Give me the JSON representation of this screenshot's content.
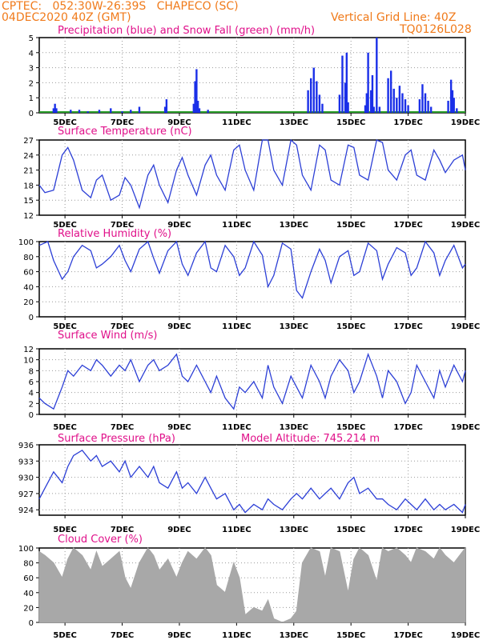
{
  "header": {
    "line1": "CPTEC:   052:30W-26:39S   CHAPECO (SC)",
    "line2": "04DEC2020 40Z (GMT)",
    "grid_note": "Vertical Grid Line: 40Z",
    "code": "TQ0126L028"
  },
  "colors": {
    "header": "#f07a1a",
    "title": "#e0108a",
    "line": "#2c3fd6",
    "bar_blue": "#1a2fe8",
    "bar_green": "#2ca02c",
    "cloud": "#a8a8a8"
  },
  "x_ticks": [
    "5DEC",
    "7DEC",
    "9DEC",
    "11DEC",
    "13DEC",
    "15DEC",
    "17DEC",
    "19DEC"
  ],
  "chart_data": [
    {
      "type": "bar",
      "title": "Precipitation (blue) and Snow Fall (green) (mm/h)",
      "ylim": [
        0,
        5
      ],
      "yticks": [
        "0",
        "1",
        "2",
        "3",
        "4",
        "5"
      ],
      "x_range_days": [
        4.1,
        19.0
      ],
      "series": [
        {
          "x": [
            4.6,
            4.65,
            4.7,
            5.2,
            5.5,
            5.8,
            6.2,
            6.6,
            7.0,
            7.3,
            7.6,
            8.5,
            8.55,
            9.5,
            9.55,
            9.6,
            9.65,
            9.7,
            10.0,
            13.5,
            13.6,
            13.7,
            13.8,
            13.9,
            14.0,
            14.6,
            14.7,
            14.8,
            14.85,
            14.9,
            15.5,
            15.55,
            15.6,
            15.7,
            15.75,
            15.8,
            15.9,
            16.0,
            16.3,
            16.4,
            16.5,
            16.6,
            16.7,
            16.8,
            16.9,
            17.0,
            17.4,
            17.5,
            17.6,
            17.7,
            17.8,
            18.4,
            18.5,
            18.55,
            18.6,
            18.7
          ],
          "values": [
            0.3,
            0.6,
            0.3,
            0.2,
            0.2,
            0.1,
            0.2,
            0.3,
            0.1,
            0.2,
            0.4,
            0.4,
            0.9,
            0.6,
            2.1,
            2.9,
            0.8,
            0.3,
            0.2,
            1.5,
            2.3,
            3.0,
            2.1,
            1.2,
            0.6,
            1.2,
            3.8,
            2.0,
            4.0,
            0.7,
            0.5,
            1.3,
            4.0,
            1.5,
            2.5,
            0.4,
            5.0,
            0.4,
            2.3,
            2.8,
            1.6,
            1.0,
            1.8,
            1.3,
            0.9,
            0.5,
            0.9,
            1.9,
            1.3,
            0.8,
            0.4,
            0.8,
            2.2,
            1.5,
            1.0,
            0.3
          ]
        }
      ]
    },
    {
      "type": "line",
      "title": "Surface Temperature (nC)",
      "ylim": [
        12,
        27
      ],
      "yticks": [
        "12",
        "15",
        "18",
        "21",
        "24",
        "27"
      ],
      "x": [
        4.1,
        4.3,
        4.6,
        4.9,
        5.1,
        5.3,
        5.6,
        5.9,
        6.1,
        6.3,
        6.6,
        6.9,
        7.1,
        7.3,
        7.6,
        7.9,
        8.1,
        8.3,
        8.6,
        8.9,
        9.1,
        9.3,
        9.6,
        9.9,
        10.1,
        10.3,
        10.6,
        10.9,
        11.1,
        11.3,
        11.6,
        11.9,
        12.1,
        12.3,
        12.6,
        12.9,
        13.1,
        13.3,
        13.6,
        13.9,
        14.1,
        14.3,
        14.6,
        14.9,
        15.1,
        15.3,
        15.6,
        15.9,
        16.1,
        16.3,
        16.6,
        16.9,
        17.1,
        17.3,
        17.6,
        17.9,
        18.1,
        18.3,
        18.6,
        18.9,
        19.0
      ],
      "values": [
        18,
        16.5,
        17,
        24,
        25.5,
        23,
        17,
        15.5,
        19,
        20,
        15,
        16,
        19.5,
        18,
        13.5,
        20,
        22,
        18,
        14.5,
        21,
        23.5,
        20,
        16,
        22,
        24,
        20,
        17,
        25,
        26,
        21,
        17,
        27,
        27,
        21,
        18,
        27,
        26,
        20,
        17,
        26,
        25,
        19,
        18,
        26,
        25.5,
        20,
        19,
        27,
        26.5,
        21,
        19,
        24,
        25,
        20,
        19,
        25,
        23,
        20.5,
        23,
        24,
        21
      ]
    },
    {
      "type": "line",
      "title": "Relative Humidity (%)",
      "ylim": [
        0,
        100
      ],
      "yticks": [
        "0",
        "20",
        "40",
        "60",
        "80",
        "100"
      ],
      "x": [
        4.1,
        4.4,
        4.6,
        4.9,
        5.1,
        5.3,
        5.6,
        5.9,
        6.1,
        6.3,
        6.6,
        6.9,
        7.1,
        7.3,
        7.6,
        7.9,
        8.1,
        8.3,
        8.6,
        8.9,
        9.1,
        9.3,
        9.6,
        9.9,
        10.1,
        10.3,
        10.6,
        10.9,
        11.1,
        11.3,
        11.6,
        11.9,
        12.1,
        12.3,
        12.6,
        12.9,
        13.1,
        13.3,
        13.6,
        13.9,
        14.1,
        14.3,
        14.6,
        14.9,
        15.1,
        15.3,
        15.6,
        15.9,
        16.1,
        16.3,
        16.6,
        16.9,
        17.1,
        17.3,
        17.6,
        17.9,
        18.1,
        18.3,
        18.6,
        18.9,
        19.0
      ],
      "values": [
        95,
        100,
        75,
        50,
        60,
        80,
        95,
        88,
        65,
        70,
        80,
        95,
        75,
        60,
        90,
        100,
        78,
        58,
        88,
        100,
        70,
        55,
        85,
        100,
        65,
        60,
        95,
        80,
        55,
        65,
        100,
        82,
        40,
        55,
        98,
        90,
        35,
        25,
        60,
        90,
        75,
        45,
        80,
        88,
        55,
        60,
        98,
        88,
        50,
        70,
        92,
        85,
        55,
        65,
        100,
        85,
        55,
        75,
        95,
        65,
        70
      ]
    },
    {
      "type": "line",
      "title": "Surface Wind (m/s)",
      "ylim": [
        0,
        12
      ],
      "yticks": [
        "0",
        "2",
        "4",
        "6",
        "8",
        "10",
        "12"
      ],
      "x": [
        4.1,
        4.3,
        4.6,
        4.9,
        5.1,
        5.3,
        5.6,
        5.9,
        6.1,
        6.3,
        6.6,
        6.9,
        7.1,
        7.3,
        7.6,
        7.9,
        8.1,
        8.3,
        8.6,
        8.9,
        9.1,
        9.3,
        9.6,
        9.9,
        10.1,
        10.3,
        10.6,
        10.9,
        11.1,
        11.3,
        11.6,
        11.9,
        12.1,
        12.3,
        12.6,
        12.9,
        13.1,
        13.3,
        13.6,
        13.9,
        14.1,
        14.3,
        14.6,
        14.9,
        15.1,
        15.3,
        15.6,
        15.9,
        16.1,
        16.3,
        16.6,
        16.9,
        17.1,
        17.3,
        17.6,
        17.9,
        18.1,
        18.3,
        18.6,
        18.9,
        19.0
      ],
      "values": [
        3,
        2,
        1,
        5,
        8,
        7,
        9,
        8,
        10,
        9,
        7,
        9,
        8,
        10,
        6,
        9,
        10,
        8,
        9,
        11,
        7,
        6,
        9,
        6,
        4,
        7,
        3,
        1,
        5,
        4,
        6,
        3,
        9,
        5,
        2,
        7,
        5,
        3,
        9,
        6,
        3,
        7,
        10,
        8,
        4,
        6,
        11,
        7,
        3,
        8,
        6,
        2,
        4,
        9,
        6,
        3,
        8,
        5,
        9,
        6,
        8
      ]
    },
    {
      "type": "line",
      "title": "Surface Pressure (hPa)",
      "annotation": "Model Altitude: 745.214 m",
      "ylim": [
        923,
        936
      ],
      "yticks": [
        "924",
        "927",
        "930",
        "933",
        "936"
      ],
      "x": [
        4.1,
        4.3,
        4.6,
        4.9,
        5.1,
        5.3,
        5.6,
        5.9,
        6.1,
        6.3,
        6.6,
        6.9,
        7.1,
        7.3,
        7.6,
        7.9,
        8.1,
        8.3,
        8.6,
        8.9,
        9.1,
        9.3,
        9.6,
        9.9,
        10.1,
        10.3,
        10.6,
        10.9,
        11.1,
        11.3,
        11.6,
        11.9,
        12.1,
        12.3,
        12.6,
        12.9,
        13.1,
        13.3,
        13.6,
        13.9,
        14.1,
        14.3,
        14.6,
        14.9,
        15.1,
        15.3,
        15.6,
        15.9,
        16.1,
        16.3,
        16.6,
        16.9,
        17.1,
        17.3,
        17.6,
        17.9,
        18.1,
        18.3,
        18.6,
        18.9,
        19.0
      ],
      "values": [
        926,
        928,
        931,
        929,
        932,
        934,
        935,
        933,
        934,
        932,
        933,
        931,
        933,
        930,
        932,
        930,
        932,
        929,
        928,
        931,
        928,
        929,
        927,
        930,
        928,
        926,
        927,
        924,
        925,
        923.5,
        925,
        924,
        926,
        925,
        924,
        926,
        927,
        926,
        928,
        926,
        927,
        928,
        926,
        929,
        930,
        927,
        928,
        926,
        926,
        925,
        924,
        926,
        925,
        924,
        926,
        924,
        925,
        924,
        925,
        923.5,
        925
      ]
    },
    {
      "type": "area",
      "title": "Cloud Cover (%)",
      "ylim": [
        0,
        100
      ],
      "yticks": [
        "0",
        "20",
        "40",
        "60",
        "80",
        "100"
      ],
      "x": [
        4.1,
        4.3,
        4.6,
        4.9,
        5.1,
        5.3,
        5.6,
        5.9,
        6.1,
        6.3,
        6.6,
        6.9,
        7.1,
        7.3,
        7.6,
        7.9,
        8.1,
        8.3,
        8.6,
        8.9,
        9.1,
        9.3,
        9.6,
        9.9,
        10.1,
        10.3,
        10.6,
        10.9,
        11.1,
        11.3,
        11.6,
        11.9,
        12.1,
        12.3,
        12.6,
        12.9,
        13.1,
        13.3,
        13.6,
        13.9,
        14.1,
        14.3,
        14.6,
        14.9,
        15.1,
        15.3,
        15.6,
        15.9,
        16.1,
        16.3,
        16.6,
        16.9,
        17.1,
        17.3,
        17.6,
        17.9,
        18.1,
        18.3,
        18.6,
        18.9,
        19.0
      ],
      "values": [
        95,
        90,
        80,
        60,
        85,
        100,
        90,
        70,
        95,
        75,
        85,
        95,
        60,
        45,
        80,
        100,
        90,
        70,
        85,
        60,
        80,
        95,
        85,
        100,
        90,
        50,
        40,
        80,
        60,
        10,
        20,
        15,
        30,
        5,
        0,
        5,
        15,
        80,
        100,
        95,
        60,
        100,
        95,
        40,
        85,
        100,
        90,
        55,
        100,
        95,
        100,
        90,
        80,
        100,
        95,
        85,
        100,
        90,
        80,
        95,
        100
      ]
    }
  ]
}
